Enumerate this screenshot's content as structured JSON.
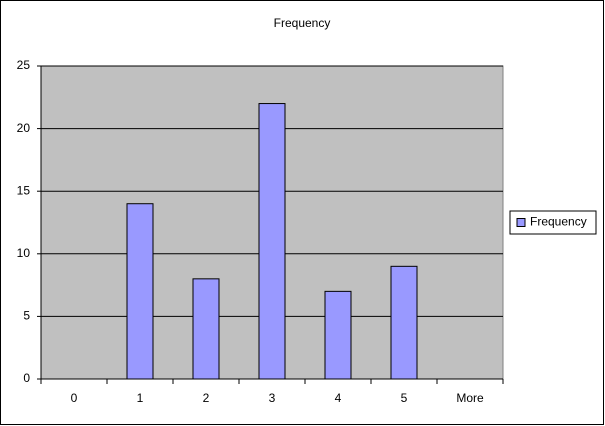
{
  "chart_data": {
    "type": "bar",
    "title": "Frequency",
    "categories": [
      "0",
      "1",
      "2",
      "3",
      "4",
      "5",
      "More"
    ],
    "series": [
      {
        "name": "Frequency",
        "color": "#9999ff",
        "values": [
          0,
          14,
          8,
          22,
          7,
          9,
          0
        ]
      }
    ],
    "ylim": [
      0,
      25
    ],
    "yticks": [
      0,
      5,
      10,
      15,
      20,
      25
    ],
    "grid": true,
    "legend": "right"
  }
}
